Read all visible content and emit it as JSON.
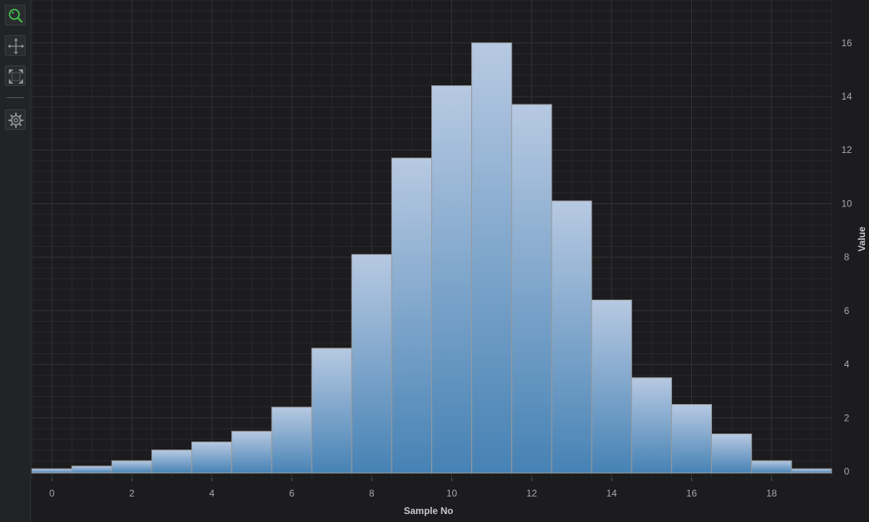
{
  "toolbar": {
    "items": [
      {
        "name": "zoom-tool",
        "icon": "zoom-magnifier-icon",
        "active": true
      },
      {
        "name": "pan-tool",
        "icon": "pan-arrows-icon",
        "active": false
      },
      {
        "name": "zoom-extents-tool",
        "icon": "zoom-extents-icon",
        "active": false
      },
      {
        "name": "settings-tool",
        "icon": "gear-icon",
        "active": false
      }
    ]
  },
  "chart_data": {
    "type": "bar",
    "xlabel": "Sample No",
    "ylabel": "Value",
    "x": [
      0,
      1,
      2,
      3,
      4,
      5,
      6,
      7,
      8,
      9,
      10,
      11,
      12,
      13,
      14,
      15,
      16,
      17,
      18,
      19
    ],
    "values": [
      0.1,
      0.2,
      0.4,
      0.8,
      1.1,
      1.5,
      2.4,
      4.6,
      8.1,
      11.7,
      14.4,
      16.0,
      13.7,
      10.1,
      6.4,
      3.5,
      2.5,
      1.4,
      0.4,
      0.1
    ],
    "xlim": [
      -0.5,
      19.5
    ],
    "ylim": [
      -0.25,
      17.6
    ],
    "xticks": [
      "0",
      "2",
      "4",
      "6",
      "8",
      "10",
      "12",
      "14",
      "16",
      "18"
    ],
    "yticks": [
      "0",
      "2",
      "4",
      "6",
      "8",
      "10",
      "12",
      "14",
      "16"
    ],
    "grid": true,
    "y_axis_position": "right",
    "colors": {
      "bar_top": "#b7c9e2",
      "bar_bottom": "#4682b4",
      "bar_stroke": "#9a9a9a",
      "grid_major": "#333438",
      "grid_minor": "#27282b",
      "background": "#1c1c1e"
    }
  }
}
